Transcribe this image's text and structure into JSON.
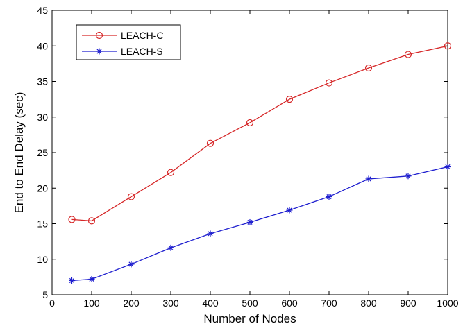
{
  "chart_data": {
    "type": "line",
    "title": "",
    "xlabel": "Number of Nodes",
    "ylabel": "End to End Delay (sec)",
    "xlim": [
      0,
      1000
    ],
    "ylim": [
      5,
      45
    ],
    "xticks": [
      0,
      100,
      200,
      300,
      400,
      500,
      600,
      700,
      800,
      900,
      1000
    ],
    "yticks": [
      5,
      10,
      15,
      20,
      25,
      30,
      35,
      40,
      45
    ],
    "grid": false,
    "legend_position": "top-left",
    "series": [
      {
        "name": "LEACH-C",
        "color": "#d62728",
        "marker": "circle",
        "x": [
          50,
          100,
          200,
          300,
          400,
          500,
          600,
          700,
          800,
          900,
          1000
        ],
        "y": [
          15.6,
          15.4,
          18.8,
          22.2,
          26.3,
          29.2,
          32.5,
          34.8,
          36.9,
          38.8,
          40.0
        ]
      },
      {
        "name": "LEACH-S",
        "color": "#1f1fcf",
        "marker": "star",
        "x": [
          50,
          100,
          200,
          300,
          400,
          500,
          600,
          700,
          800,
          900,
          1000
        ],
        "y": [
          7.0,
          7.2,
          9.3,
          11.6,
          13.6,
          15.2,
          16.9,
          18.8,
          21.3,
          21.7,
          23.0
        ]
      }
    ]
  }
}
